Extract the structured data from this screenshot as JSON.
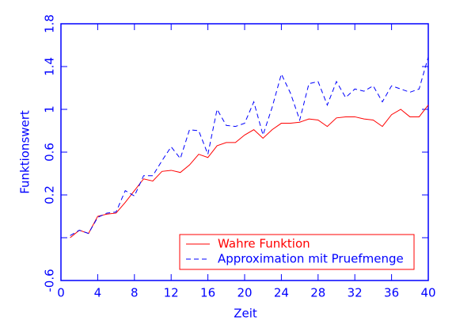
{
  "chart_data": {
    "type": "line",
    "xlabel": "Zeit",
    "ylabel": "Funktionswert",
    "x": [
      1,
      2,
      3,
      4,
      5,
      6,
      7,
      8,
      9,
      10,
      11,
      12,
      13,
      14,
      15,
      16,
      17,
      18,
      19,
      20,
      21,
      22,
      23,
      24,
      25,
      26,
      27,
      28,
      29,
      30,
      31,
      32,
      33,
      34,
      35,
      36,
      37,
      38,
      39,
      40
    ],
    "series": [
      {
        "name": "Wahre Funktion",
        "color": "#ff0000",
        "line_style": "solid",
        "values": [
          -0.2,
          -0.13,
          -0.16,
          0.0,
          0.02,
          0.03,
          0.13,
          0.24,
          0.35,
          0.33,
          0.42,
          0.43,
          0.41,
          0.48,
          0.58,
          0.55,
          0.66,
          0.69,
          0.69,
          0.76,
          0.81,
          0.73,
          0.81,
          0.87,
          0.87,
          0.88,
          0.91,
          0.9,
          0.84,
          0.92,
          0.93,
          0.93,
          0.91,
          0.9,
          0.84,
          0.95,
          1.0,
          0.93,
          0.93,
          1.04
        ]
      },
      {
        "name": "Approximation mit Pruefmenge",
        "color": "#0000ff",
        "line_style": "dashed",
        "values": [
          -0.18,
          -0.13,
          -0.16,
          -0.01,
          0.03,
          0.04,
          0.24,
          0.19,
          0.38,
          0.38,
          0.52,
          0.65,
          0.54,
          0.81,
          0.8,
          0.58,
          1.0,
          0.85,
          0.84,
          0.87,
          1.07,
          0.76,
          1.02,
          1.33,
          1.15,
          0.9,
          1.24,
          1.26,
          1.04,
          1.26,
          1.11,
          1.19,
          1.17,
          1.22,
          1.07,
          1.22,
          1.19,
          1.16,
          1.19,
          1.49
        ]
      }
    ],
    "xlim": [
      0,
      40
    ],
    "xticks": [
      0,
      4,
      8,
      12,
      16,
      20,
      24,
      28,
      32,
      36,
      40
    ],
    "ylim": [
      -0.6,
      1.8
    ],
    "yticks": [
      -0.6,
      {
        "value": -0.2,
        "label": null
      },
      0.2,
      0.6,
      1.0,
      1.4,
      1.8
    ],
    "axis_color": "#0000ff",
    "legend_color": "#ff0000",
    "legend": "lower right"
  }
}
